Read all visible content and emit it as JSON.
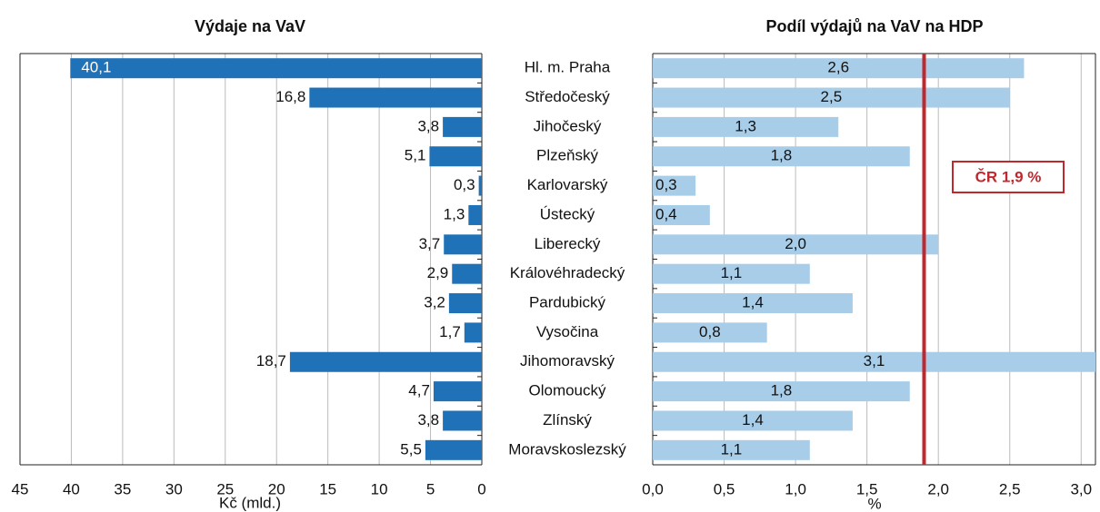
{
  "chart_data": [
    {
      "type": "bar",
      "orientation": "horizontal",
      "reversed": true,
      "title": "Výdaje na VaV",
      "xlabel": "Kč (mld.)",
      "categories": [
        "Hl. m. Praha",
        "Středočeský",
        "Jihočeský",
        "Plzeňský",
        "Karlovarský",
        "Ústecký",
        "Liberecký",
        "Královéhradecký",
        "Pardubický",
        "Vysočina",
        "Jihomoravský",
        "Olomoucký",
        "Zlínský",
        "Moravskoslezský"
      ],
      "values": [
        40.1,
        16.8,
        3.8,
        5.1,
        0.3,
        1.3,
        3.7,
        2.9,
        3.2,
        1.7,
        18.7,
        4.7,
        3.8,
        5.5
      ],
      "value_labels": [
        "40,1",
        "16,8",
        "3,8",
        "5,1",
        "0,3",
        "1,3",
        "3,7",
        "2,9",
        "3,2",
        "1,7",
        "18,7",
        "4,7",
        "3,8",
        "5,5"
      ],
      "color": "#1f72b8",
      "xlim": [
        0,
        45
      ],
      "xticks": [
        0,
        5,
        10,
        15,
        20,
        25,
        30,
        35,
        40,
        45
      ],
      "grid": true
    },
    {
      "type": "bar",
      "orientation": "horizontal",
      "reversed": false,
      "title": "Podíl výdajů na VaV na HDP",
      "xlabel": "%",
      "values": [
        2.6,
        2.5,
        1.3,
        1.8,
        0.3,
        0.4,
        2.0,
        1.1,
        1.4,
        0.8,
        3.1,
        1.8,
        1.4,
        1.1
      ],
      "value_labels": [
        "2,6",
        "2,5",
        "1,3",
        "1,8",
        "0,3",
        "0,4",
        "2,0",
        "1,1",
        "1,4",
        "0,8",
        "3,1",
        "1,8",
        "1,4",
        "1,1"
      ],
      "color": "#a8cde9",
      "xlim": [
        0,
        3.1
      ],
      "xticks": [
        {
          "value": 0,
          "label": "0,0"
        },
        {
          "value": 0.5,
          "label": "0,5"
        },
        {
          "value": 1,
          "label": "1,0"
        },
        {
          "value": 1.5,
          "label": "1,5"
        },
        {
          "value": 2,
          "label": "2,0"
        },
        {
          "value": 2.5,
          "label": "2,5"
        },
        {
          "value": 3,
          "label": "3,0"
        }
      ],
      "grid": true,
      "reference_line": {
        "value": 1.9,
        "label": "ČR 1,9 %",
        "color": "#c0282d"
      }
    }
  ]
}
